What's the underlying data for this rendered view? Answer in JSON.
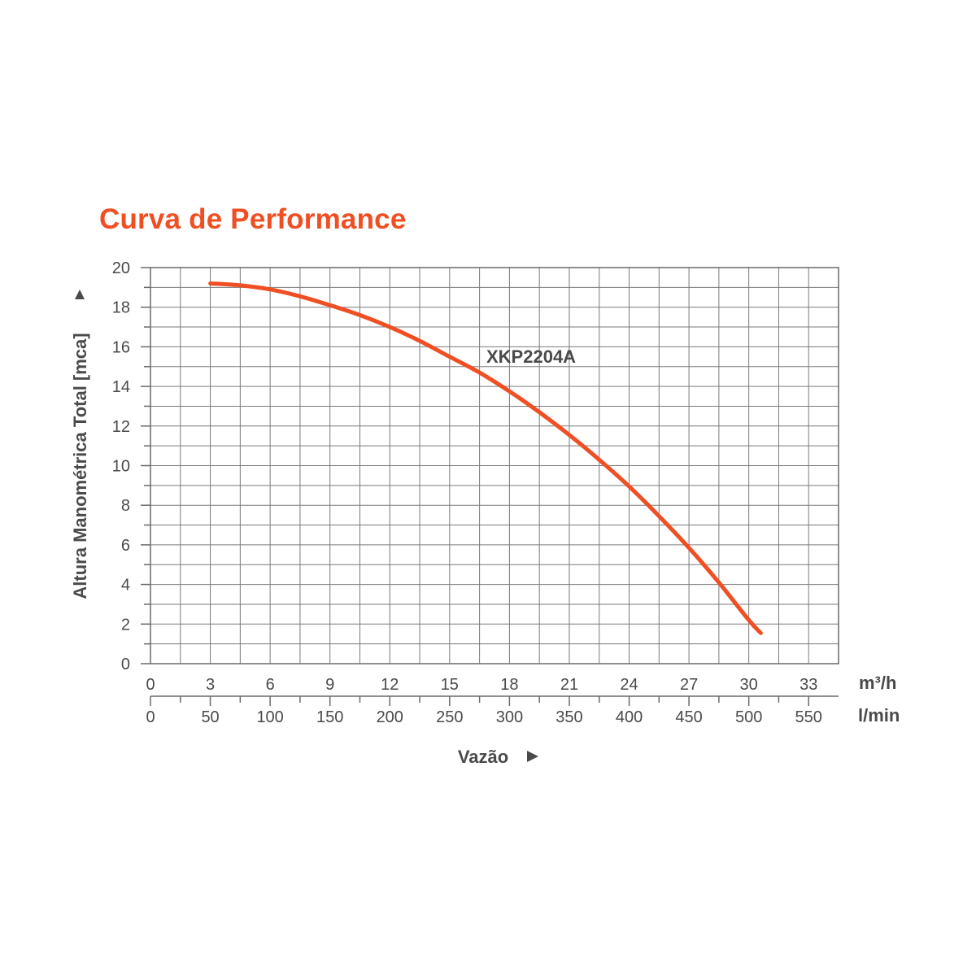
{
  "chart_data": {
    "type": "line",
    "title": "Curva de Performance",
    "ylabel": "Altura Manométrica Total [mca]",
    "xlabel": "Vazão",
    "ylim": [
      0,
      20
    ],
    "yticks": [
      0,
      2,
      4,
      6,
      8,
      10,
      12,
      14,
      16,
      18,
      20
    ],
    "xlim": [
      0,
      34.5
    ],
    "x_unit": "m³/h",
    "xticks": [
      0,
      3,
      6,
      9,
      12,
      15,
      18,
      21,
      24,
      27,
      30,
      33
    ],
    "x2_unit": "l/min",
    "x2ticks": [
      0,
      50,
      100,
      150,
      200,
      250,
      300,
      350,
      400,
      450,
      500,
      550
    ],
    "grid": true,
    "series": [
      {
        "name": "XKP2204A",
        "color": "#f04e23",
        "x": [
          3.0,
          4.5,
          6.0,
          7.5,
          9.0,
          10.5,
          12.0,
          13.5,
          15.0,
          16.5,
          18.0,
          19.5,
          21.0,
          22.5,
          24.0,
          25.5,
          27.0,
          28.5,
          30.0,
          30.6
        ],
        "y": [
          19.2,
          19.1,
          18.9,
          18.55,
          18.1,
          17.6,
          17.0,
          16.3,
          15.5,
          14.7,
          13.75,
          12.7,
          11.55,
          10.3,
          8.95,
          7.45,
          5.85,
          4.1,
          2.2,
          1.55
        ]
      }
    ]
  }
}
